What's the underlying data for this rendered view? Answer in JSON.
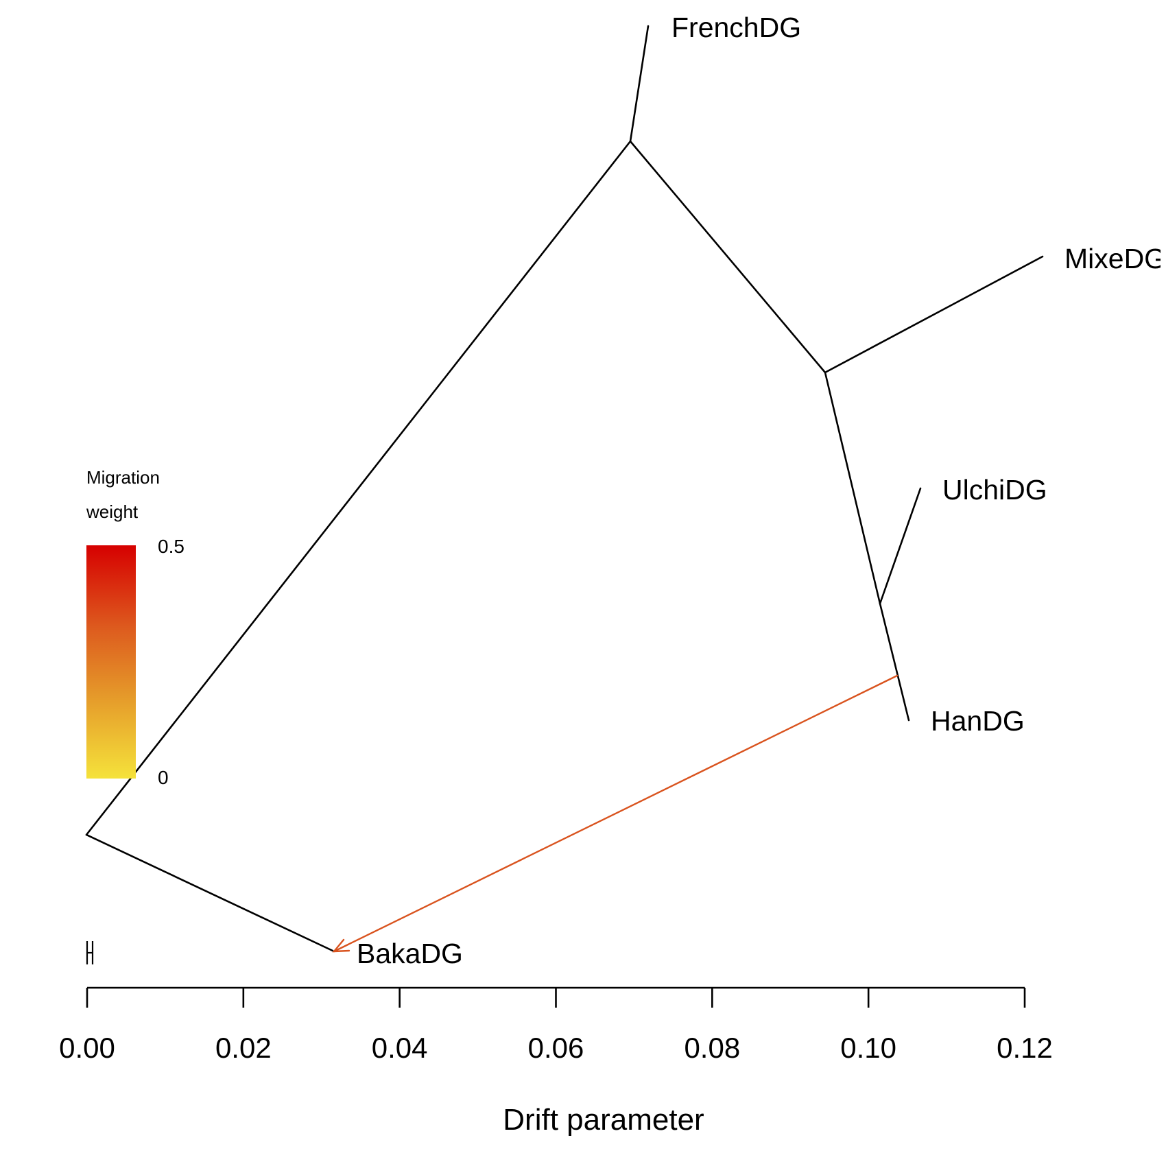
{
  "chart_data": {
    "type": "tree",
    "xlabel": "Drift parameter",
    "xlim": [
      0.0,
      0.12
    ],
    "x_ticks": [
      "0.00",
      "0.02",
      "0.04",
      "0.06",
      "0.08",
      "0.10",
      "0.12"
    ],
    "leaves": [
      {
        "name": "FrenchDG"
      },
      {
        "name": "MixeDG"
      },
      {
        "name": "UlchiDG"
      },
      {
        "name": "HanDG"
      },
      {
        "name": "BakaDG"
      }
    ],
    "migration_edges": [
      {
        "from": "HanDG lineage",
        "to": "BakaDG",
        "color": "#d9531e"
      }
    ],
    "legend": {
      "title_line1": "Migration",
      "title_line2": "weight",
      "max_label": "0.5",
      "min_label": "0",
      "color_min": "#f5e23b",
      "color_max": "#d60000"
    },
    "colors": {
      "tree": "#000000",
      "migration": "#d9531e"
    }
  }
}
